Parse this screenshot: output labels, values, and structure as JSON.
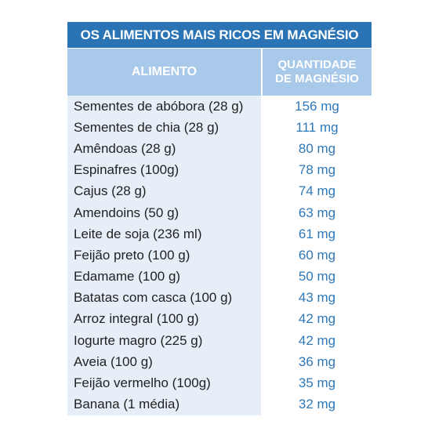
{
  "title": "OS ALIMENTOS MAIS RICOS EM MAGNÉSIO",
  "header": {
    "food": "ALIMENTO",
    "qty_line1": "QUANTIDADE",
    "qty_line2": "DE MAGNÉSIO"
  },
  "rows": [
    {
      "food": "Sementes de abóbora (28 g)",
      "qty": "156 mg"
    },
    {
      "food": "Sementes de chia (28 g)",
      "qty": "111 mg"
    },
    {
      "food": "Amêndoas (28 g)",
      "qty": "80 mg"
    },
    {
      "food": "Espinafres (100g)",
      "qty": "78 mg"
    },
    {
      "food": "Cajus (28 g)",
      "qty": "74 mg"
    },
    {
      "food": "Amendoins (50 g)",
      "qty": "63 mg"
    },
    {
      "food": "Leite de soja (236 ml)",
      "qty": "61 mg"
    },
    {
      "food": "Feijão preto (100 g)",
      "qty": "60 mg"
    },
    {
      "food": "Edamame (100 g)",
      "qty": "50 mg"
    },
    {
      "food": "Batatas com casca (100 g)",
      "qty": "43 mg"
    },
    {
      "food": "Arroz integral (100 g)",
      "qty": "42 mg"
    },
    {
      "food": "Iogurte magro (225 g)",
      "qty": "42 mg"
    },
    {
      "food": "Aveia (100 g)",
      "qty": "36 mg"
    },
    {
      "food": "Feijão vermelho (100g)",
      "qty": "35 mg"
    },
    {
      "food": "Banana (1 média)",
      "qty": "32 mg"
    }
  ],
  "colors": {
    "title_bg": "#2a73b4",
    "header_bg": "#a9c9ea",
    "food_cell_bg": "#e6eff8",
    "qty_text": "#2e78b8"
  }
}
